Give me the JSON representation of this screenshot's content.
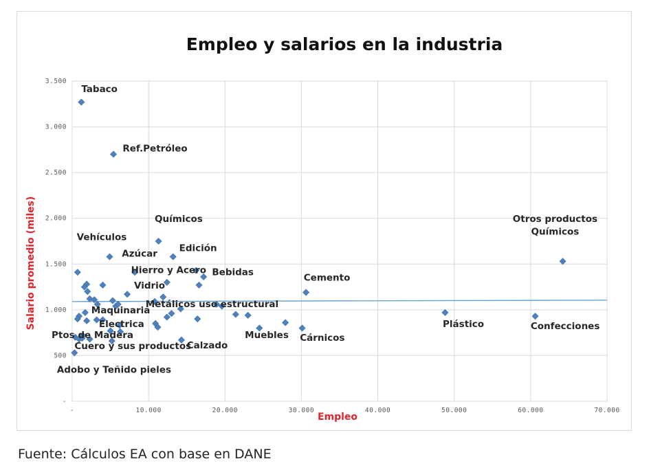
{
  "chart_data": {
    "type": "scatter",
    "title": "Empleo y salarios en la industria",
    "xlabel": "Empleo",
    "ylabel": "Salario promedio (miles)",
    "xlim": [
      0,
      70000
    ],
    "ylim": [
      0,
      3500
    ],
    "x_ticks": [
      "-",
      "10.000",
      "20.000",
      "30.000",
      "40.000",
      "50.000",
      "60.000",
      "70.000"
    ],
    "y_ticks": [
      "-",
      "500",
      "1.000",
      "1.500",
      "2.000",
      "2.500",
      "3.000",
      "3.500"
    ],
    "grid": true,
    "marker_color": "#4f81bd",
    "trendline": {
      "color": "#5b9bd5",
      "y_at_0": 1090,
      "y_at_70000": 1105
    },
    "points": [
      {
        "x": 1200,
        "y": 3270
      },
      {
        "x": 5400,
        "y": 2700
      },
      {
        "x": 11300,
        "y": 1750
      },
      {
        "x": 13200,
        "y": 1580
      },
      {
        "x": 4900,
        "y": 1580
      },
      {
        "x": 64200,
        "y": 1530
      },
      {
        "x": 700,
        "y": 1410
      },
      {
        "x": 8200,
        "y": 1410
      },
      {
        "x": 16200,
        "y": 1430
      },
      {
        "x": 17200,
        "y": 1360
      },
      {
        "x": 12400,
        "y": 1300
      },
      {
        "x": 16600,
        "y": 1270
      },
      {
        "x": 1900,
        "y": 1280
      },
      {
        "x": 1600,
        "y": 1250
      },
      {
        "x": 4000,
        "y": 1270
      },
      {
        "x": 2000,
        "y": 1200
      },
      {
        "x": 30600,
        "y": 1190
      },
      {
        "x": 7200,
        "y": 1170
      },
      {
        "x": 2300,
        "y": 1120
      },
      {
        "x": 2900,
        "y": 1110
      },
      {
        "x": 11900,
        "y": 1140
      },
      {
        "x": 5300,
        "y": 1100
      },
      {
        "x": 10800,
        "y": 1090
      },
      {
        "x": 3300,
        "y": 1060
      },
      {
        "x": 5700,
        "y": 1040
      },
      {
        "x": 6000,
        "y": 1060
      },
      {
        "x": 18900,
        "y": 1060
      },
      {
        "x": 19600,
        "y": 1040
      },
      {
        "x": 14200,
        "y": 1010
      },
      {
        "x": 1700,
        "y": 970
      },
      {
        "x": 13000,
        "y": 960
      },
      {
        "x": 21400,
        "y": 950
      },
      {
        "x": 23000,
        "y": 940
      },
      {
        "x": 12400,
        "y": 920
      },
      {
        "x": 900,
        "y": 930
      },
      {
        "x": 700,
        "y": 900
      },
      {
        "x": 3200,
        "y": 890
      },
      {
        "x": 4000,
        "y": 890
      },
      {
        "x": 1900,
        "y": 880
      },
      {
        "x": 16400,
        "y": 900
      },
      {
        "x": 48800,
        "y": 970
      },
      {
        "x": 60600,
        "y": 930
      },
      {
        "x": 27900,
        "y": 860
      },
      {
        "x": 10900,
        "y": 850
      },
      {
        "x": 6200,
        "y": 830
      },
      {
        "x": 11200,
        "y": 810
      },
      {
        "x": 24500,
        "y": 800
      },
      {
        "x": 30100,
        "y": 800
      },
      {
        "x": 5000,
        "y": 770
      },
      {
        "x": 6300,
        "y": 760
      },
      {
        "x": 1400,
        "y": 720
      },
      {
        "x": 400,
        "y": 700
      },
      {
        "x": 900,
        "y": 680
      },
      {
        "x": 2300,
        "y": 680
      },
      {
        "x": 1300,
        "y": 690
      },
      {
        "x": 5200,
        "y": 660
      },
      {
        "x": 14300,
        "y": 670
      },
      {
        "x": 300,
        "y": 530
      }
    ],
    "annotations": [
      {
        "text": "Tabaco",
        "x": 1200,
        "y": 3380,
        "anchor": "start"
      },
      {
        "text": "Ref.Petróleo",
        "x": 6600,
        "y": 2730,
        "anchor": "start"
      },
      {
        "text": "Químicos",
        "x": 10800,
        "y": 1960,
        "anchor": "start"
      },
      {
        "text": "Vehículos",
        "x": 600,
        "y": 1760,
        "anchor": "start"
      },
      {
        "text": "Edición",
        "x": 14000,
        "y": 1640,
        "anchor": "start"
      },
      {
        "text": "Azúcar",
        "x": 6500,
        "y": 1580,
        "anchor": "start"
      },
      {
        "text": "Otros productos",
        "x": 63200,
        "y": 1960,
        "anchor": "middle"
      },
      {
        "text": "Químicos",
        "x": 63200,
        "y": 1820,
        "anchor": "middle"
      },
      {
        "text": "Hierro y Acero",
        "x": 7700,
        "y": 1400,
        "anchor": "start"
      },
      {
        "text": "Bebidas",
        "x": 18300,
        "y": 1380,
        "anchor": "start"
      },
      {
        "text": "Cemento",
        "x": 30300,
        "y": 1320,
        "anchor": "start"
      },
      {
        "text": "Vidrio",
        "x": 8100,
        "y": 1230,
        "anchor": "start"
      },
      {
        "text": "Metálicos uso estructural",
        "x": 9600,
        "y": 1030,
        "anchor": "start"
      },
      {
        "text": "Maquinaria",
        "x": 2500,
        "y": 960,
        "anchor": "start"
      },
      {
        "text": "Electrica",
        "x": 3500,
        "y": 810,
        "anchor": "start"
      },
      {
        "text": "Plástico",
        "x": 48500,
        "y": 810,
        "anchor": "start"
      },
      {
        "text": "Confecciones",
        "x": 60000,
        "y": 790,
        "anchor": "start"
      },
      {
        "text": "Ptos de Madera",
        "x": -2700,
        "y": 690,
        "anchor": "start"
      },
      {
        "text": "Muebles",
        "x": 22600,
        "y": 690,
        "anchor": "start"
      },
      {
        "text": "Cárnicos",
        "x": 29800,
        "y": 660,
        "anchor": "start"
      },
      {
        "text": "Calzado",
        "x": 15000,
        "y": 580,
        "anchor": "start"
      },
      {
        "text": "Cuero y sus productos",
        "x": 300,
        "y": 570,
        "anchor": "start"
      },
      {
        "text": "Adobo y Teñido pieles",
        "x": -2000,
        "y": 310,
        "anchor": "start"
      }
    ]
  },
  "source_note": "Fuente: Cálculos EA con base en DANE"
}
